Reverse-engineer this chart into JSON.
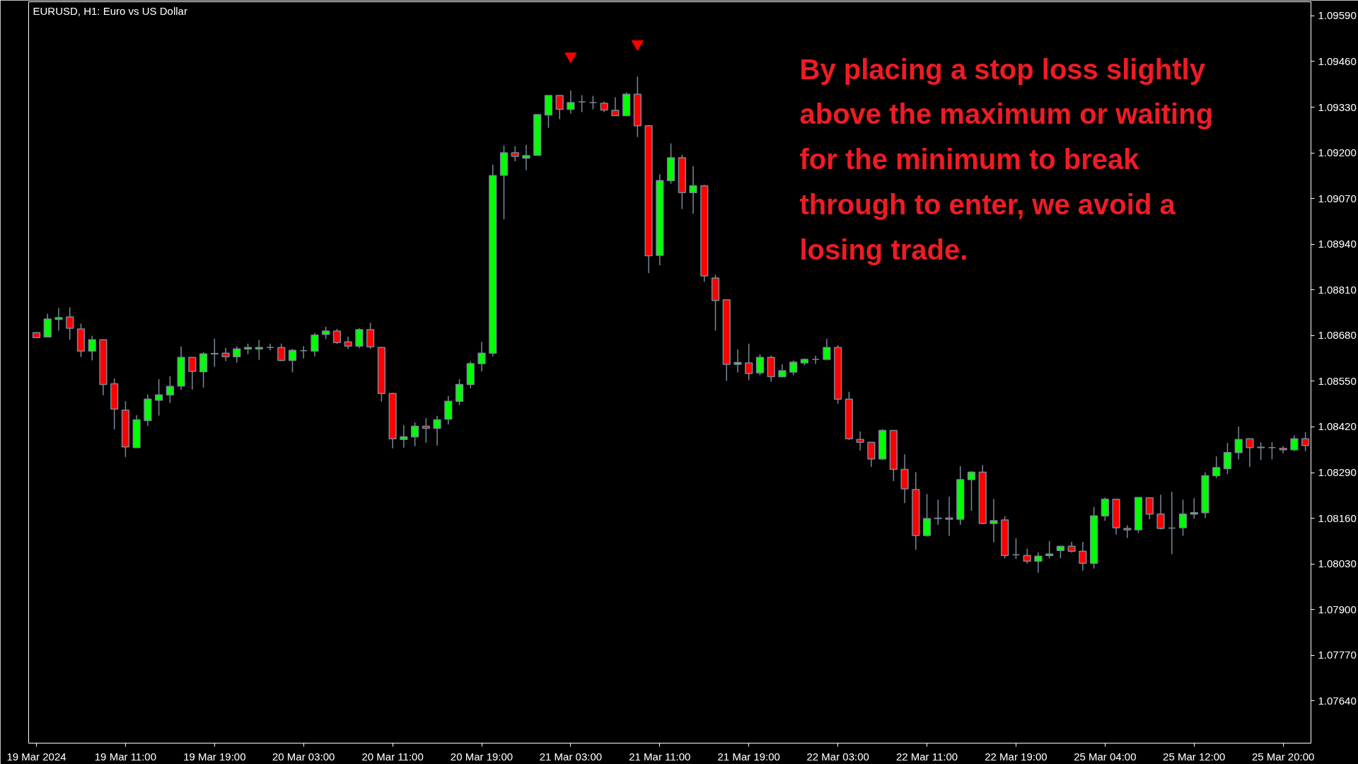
{
  "chart_data": {
    "type": "candlestick",
    "title": "EURUSD, H1:  Euro vs US Dollar",
    "annotations": [
      "By placing a stop loss slightly\nabove the maximum or waiting\nfor the minimum to break\nthrough to enter, we avoid a\nlosing trade."
    ],
    "categories": [
      "19 Mar 2024",
      null,
      null,
      null,
      null,
      null,
      null,
      null,
      "19 Mar 11:00",
      null,
      null,
      null,
      null,
      null,
      null,
      null,
      "19 Mar 19:00",
      null,
      null,
      null,
      null,
      null,
      null,
      null,
      "20 Mar 03:00",
      null,
      null,
      null,
      null,
      null,
      null,
      null,
      "20 Mar 11:00",
      null,
      null,
      null,
      null,
      null,
      null,
      null,
      "20 Mar 19:00",
      null,
      null,
      null,
      null,
      null,
      null,
      null,
      "21 Mar 03:00",
      null,
      null,
      null,
      null,
      null,
      null,
      null,
      "21 Mar 11:00",
      null,
      null,
      null,
      null,
      null,
      null,
      null,
      "21 Mar 19:00",
      null,
      null,
      null,
      null,
      null,
      null,
      null,
      "22 Mar 03:00",
      null,
      null,
      null,
      null,
      null,
      null,
      null,
      "22 Mar 11:00",
      null,
      null,
      null,
      null,
      null,
      null,
      null,
      "22 Mar 19:00",
      null,
      null,
      null,
      null,
      null,
      null,
      null,
      "25 Mar 04:00",
      null,
      null,
      null,
      null,
      null,
      null,
      null,
      "25 Mar 12:00",
      null,
      null,
      null,
      null,
      null,
      null,
      null,
      "25 Mar 20:00",
      null,
      null
    ],
    "ohlc": [
      [
        1.08688,
        1.0869,
        1.08673,
        1.08674
      ],
      [
        1.08676,
        1.08742,
        1.08676,
        1.08727
      ],
      [
        1.08726,
        1.08758,
        1.08694,
        1.08731
      ],
      [
        1.08733,
        1.0876,
        1.08668,
        1.08701
      ],
      [
        1.08699,
        1.08714,
        1.08619,
        1.08636
      ],
      [
        1.08636,
        1.08679,
        1.08609,
        1.08668
      ],
      [
        1.08668,
        1.08668,
        1.0851,
        1.08541
      ],
      [
        1.08543,
        1.08558,
        1.08413,
        1.08471
      ],
      [
        1.08468,
        1.08493,
        1.08334,
        1.08363
      ],
      [
        1.08361,
        1.08453,
        1.08361,
        1.0844
      ],
      [
        1.08438,
        1.08512,
        1.08423,
        1.08499
      ],
      [
        1.08496,
        1.08556,
        1.08452,
        1.08511
      ],
      [
        1.08511,
        1.08564,
        1.08488,
        1.08535
      ],
      [
        1.08536,
        1.08649,
        1.08526,
        1.08618
      ],
      [
        1.08618,
        1.08618,
        1.08526,
        1.08578
      ],
      [
        1.08577,
        1.08633,
        1.08532,
        1.08628
      ],
      [
        1.08628,
        1.08671,
        1.08591,
        1.08629
      ],
      [
        1.0863,
        1.08645,
        1.08607,
        1.0862
      ],
      [
        1.0862,
        1.08649,
        1.08603,
        1.08642
      ],
      [
        1.08642,
        1.08657,
        1.08627,
        1.08646
      ],
      [
        1.08642,
        1.08667,
        1.08611,
        1.08646
      ],
      [
        1.08646,
        1.08657,
        1.08638,
        1.08646
      ],
      [
        1.08646,
        1.08657,
        1.08607,
        1.08609
      ],
      [
        1.08609,
        1.08642,
        1.08575,
        1.08638
      ],
      [
        1.08637,
        1.0865,
        1.08615,
        1.08637
      ],
      [
        1.08636,
        1.08687,
        1.08621,
        1.08681
      ],
      [
        1.08683,
        1.08705,
        1.0867,
        1.08693
      ],
      [
        1.08693,
        1.08699,
        1.08656,
        1.0866
      ],
      [
        1.08662,
        1.08677,
        1.08642,
        1.0865
      ],
      [
        1.0865,
        1.08701,
        1.08644,
        1.08697
      ],
      [
        1.08697,
        1.08716,
        1.08642,
        1.08648
      ],
      [
        1.08646,
        1.08648,
        1.08492,
        1.08515
      ],
      [
        1.08515,
        1.08517,
        1.08359,
        1.08386
      ],
      [
        1.08384,
        1.08425,
        1.08361,
        1.08392
      ],
      [
        1.08392,
        1.08433,
        1.08365,
        1.08422
      ],
      [
        1.08422,
        1.08445,
        1.08375,
        1.08416
      ],
      [
        1.08416,
        1.08451,
        1.08367,
        1.0844
      ],
      [
        1.08442,
        1.08508,
        1.08427,
        1.08493
      ],
      [
        1.08493,
        1.08556,
        1.08482,
        1.08541
      ],
      [
        1.08541,
        1.08607,
        1.0853,
        1.086
      ],
      [
        1.086,
        1.08662,
        1.08578,
        1.0863
      ],
      [
        1.0863,
        1.09166,
        1.08621,
        1.09135
      ],
      [
        1.09136,
        1.09221,
        1.09011,
        1.092
      ],
      [
        1.092,
        1.09219,
        1.09176,
        1.0919
      ],
      [
        1.09185,
        1.09223,
        1.09151,
        1.09192
      ],
      [
        1.09193,
        1.09309,
        1.09193,
        1.09309
      ],
      [
        1.09308,
        1.09363,
        1.09271,
        1.09363
      ],
      [
        1.09363,
        1.09363,
        1.09296,
        1.09324
      ],
      [
        1.09324,
        1.09378,
        1.09312,
        1.09343
      ],
      [
        1.09345,
        1.09364,
        1.09316,
        1.09345
      ],
      [
        1.09343,
        1.09362,
        1.09324,
        1.09343
      ],
      [
        1.09341,
        1.09346,
        1.09316,
        1.09322
      ],
      [
        1.09321,
        1.09358,
        1.09306,
        1.09306
      ],
      [
        1.09306,
        1.09372,
        1.09304,
        1.09367
      ],
      [
        1.09367,
        1.09417,
        1.09245,
        1.09277
      ],
      [
        1.09277,
        1.09279,
        1.08858,
        1.08907
      ],
      [
        1.08908,
        1.09139,
        1.0888,
        1.09121
      ],
      [
        1.09121,
        1.09227,
        1.09112,
        1.09186
      ],
      [
        1.09186,
        1.09194,
        1.0904,
        1.09087
      ],
      [
        1.09087,
        1.09162,
        1.09027,
        1.09106
      ],
      [
        1.09106,
        1.09109,
        1.08833,
        1.0885
      ],
      [
        1.08844,
        1.08853,
        1.08694,
        1.0878
      ],
      [
        1.08782,
        1.08782,
        1.08551,
        1.08598
      ],
      [
        1.08598,
        1.08641,
        1.08575,
        1.08603
      ],
      [
        1.08602,
        1.08657,
        1.08553,
        1.08572
      ],
      [
        1.08574,
        1.08627,
        1.08567,
        1.08618
      ],
      [
        1.08618,
        1.08623,
        1.08549,
        1.08563
      ],
      [
        1.08563,
        1.08598,
        1.08561,
        1.0858
      ],
      [
        1.08576,
        1.08609,
        1.08567,
        1.08604
      ],
      [
        1.08602,
        1.08615,
        1.08595,
        1.08612
      ],
      [
        1.08612,
        1.08623,
        1.08599,
        1.08612
      ],
      [
        1.08612,
        1.08671,
        1.08612,
        1.08646
      ],
      [
        1.08646,
        1.08653,
        1.08486,
        1.08499
      ],
      [
        1.08499,
        1.0852,
        1.08383,
        1.08386
      ],
      [
        1.08384,
        1.08407,
        1.08353,
        1.08376
      ],
      [
        1.08376,
        1.08376,
        1.08306,
        1.08329
      ],
      [
        1.08329,
        1.08414,
        1.08326,
        1.0841
      ],
      [
        1.0841,
        1.0841,
        1.08266,
        1.08299
      ],
      [
        1.08299,
        1.08342,
        1.08203,
        1.08244
      ],
      [
        1.08242,
        1.08291,
        1.0807,
        1.08111
      ],
      [
        1.08111,
        1.08229,
        1.08108,
        1.08159
      ],
      [
        1.08159,
        1.08213,
        1.08141,
        1.0816
      ],
      [
        1.08161,
        1.08221,
        1.0811,
        1.08157
      ],
      [
        1.08157,
        1.08308,
        1.08141,
        1.0827
      ],
      [
        1.0827,
        1.08294,
        1.08181,
        1.08291
      ],
      [
        1.08291,
        1.08311,
        1.08143,
        1.08145
      ],
      [
        1.08145,
        1.08215,
        1.08092,
        1.08153
      ],
      [
        1.08155,
        1.08166,
        1.08046,
        1.08054
      ],
      [
        1.08056,
        1.08103,
        1.08044,
        1.08056
      ],
      [
        1.08054,
        1.08073,
        1.08031,
        1.08038
      ],
      [
        1.08038,
        1.08063,
        1.08005,
        1.08052
      ],
      [
        1.08054,
        1.08095,
        1.08046,
        1.08058
      ],
      [
        1.08068,
        1.0808,
        1.08046,
        1.0808
      ],
      [
        1.0808,
        1.08093,
        1.08062,
        1.08066
      ],
      [
        1.08066,
        1.08093,
        1.08011,
        1.08032
      ],
      [
        1.08032,
        1.08192,
        1.08017,
        1.08167
      ],
      [
        1.08167,
        1.08219,
        1.08153,
        1.08214
      ],
      [
        1.08214,
        1.08214,
        1.08114,
        1.08133
      ],
      [
        1.08131,
        1.0814,
        1.08104,
        1.08127
      ],
      [
        1.08127,
        1.08219,
        1.08118,
        1.08219
      ],
      [
        1.08218,
        1.08218,
        1.08157,
        1.08172
      ],
      [
        1.08172,
        1.08227,
        1.08128,
        1.08131
      ],
      [
        1.08132,
        1.08235,
        1.08058,
        1.08132
      ],
      [
        1.08133,
        1.08213,
        1.0811,
        1.08172
      ],
      [
        1.08172,
        1.08217,
        1.08159,
        1.08176
      ],
      [
        1.08176,
        1.08291,
        1.08161,
        1.08281
      ],
      [
        1.08281,
        1.08336,
        1.08274,
        1.08304
      ],
      [
        1.08301,
        1.08374,
        1.08286,
        1.08347
      ],
      [
        1.08347,
        1.08421,
        1.08328,
        1.08384
      ],
      [
        1.08386,
        1.08386,
        1.08306,
        1.08361
      ],
      [
        1.08361,
        1.08376,
        1.08326,
        1.08362
      ],
      [
        1.08361,
        1.08376,
        1.08328,
        1.08361
      ],
      [
        1.08359,
        1.08365,
        1.08345,
        1.08355
      ],
      [
        1.08355,
        1.08396,
        1.08351,
        1.08386
      ],
      [
        1.08386,
        1.08405,
        1.08351,
        1.08367
      ]
    ],
    "series": [
      {
        "type": "scatter",
        "color": "#ff0000",
        "values": [
          null,
          null,
          null,
          null,
          null,
          null,
          null,
          null,
          null,
          null,
          null,
          null,
          null,
          null,
          null,
          null,
          null,
          null,
          null,
          null,
          null,
          null,
          null,
          null,
          null,
          null,
          null,
          null,
          null,
          null,
          null,
          null,
          null,
          null,
          null,
          null,
          null,
          null,
          null,
          null,
          null,
          null,
          null,
          null,
          null,
          null,
          null,
          null,
          1.09475,
          null,
          null,
          null,
          null,
          null,
          1.0951,
          null,
          null,
          null,
          null,
          null,
          null,
          null,
          null,
          null,
          null,
          null,
          null,
          null,
          null,
          null,
          null,
          null,
          null,
          null,
          null,
          null,
          null,
          null,
          null,
          null,
          null,
          null,
          null,
          null,
          null,
          null,
          null,
          null,
          null,
          null,
          null,
          null,
          null,
          null,
          null,
          null,
          null,
          null,
          null,
          null,
          null,
          null,
          null,
          null,
          null,
          null,
          null,
          null,
          null,
          null,
          null,
          null,
          null,
          null,
          null
        ]
      }
    ],
    "ylim": [
      1.0752,
      1.0963
    ],
    "yticks": [
      {
        "value": 1.0764,
        "label": "1.07640"
      },
      {
        "value": 1.0777,
        "label": "1.07770"
      },
      {
        "value": 1.079,
        "label": "1.07900"
      },
      {
        "value": 1.0803,
        "label": "1.08030"
      },
      {
        "value": 1.0816,
        "label": "1.08160"
      },
      {
        "value": 1.0829,
        "label": "1.08290"
      },
      {
        "value": 1.0842,
        "label": "1.08420"
      },
      {
        "value": 1.0855,
        "label": "1.08550"
      },
      {
        "value": 1.0868,
        "label": "1.08680"
      },
      {
        "value": 1.0881,
        "label": "1.08810"
      },
      {
        "value": 1.0894,
        "label": "1.08940"
      },
      {
        "value": 1.0907,
        "label": "1.09070"
      },
      {
        "value": 1.092,
        "label": "1.09200"
      },
      {
        "value": 1.0933,
        "label": "1.09330"
      },
      {
        "value": 1.0946,
        "label": "1.09460"
      },
      {
        "value": 1.0959,
        "label": "1.09590"
      }
    ],
    "grid": false
  }
}
